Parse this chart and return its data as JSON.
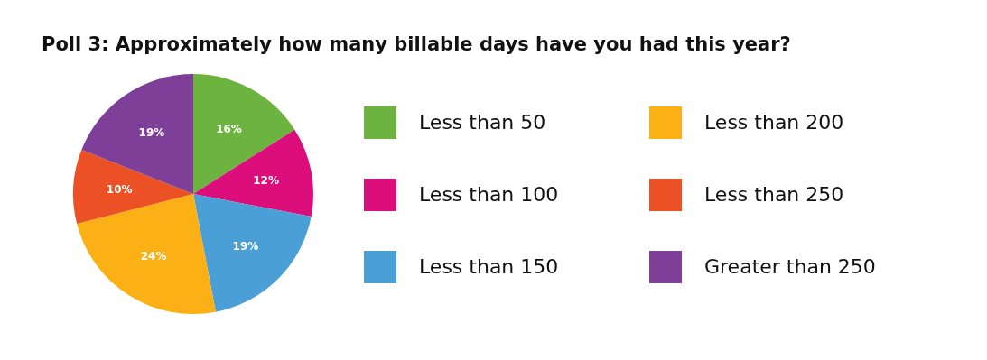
{
  "chart_data": {
    "type": "pie",
    "title": "Poll 3: Approximately how many billable days have you had this year?",
    "categories": [
      "Less than 50",
      "Less than 100",
      "Less than 150",
      "Less than 200",
      "Less than 250",
      "Greater than 250"
    ],
    "values": [
      16,
      12,
      19,
      24,
      10,
      19
    ],
    "value_labels": [
      "16%",
      "12%",
      "19%",
      "24%",
      "10%",
      "19%"
    ],
    "colors": [
      "#6db33f",
      "#dc0e7c",
      "#4a9fd6",
      "#fbb116",
      "#ec5025",
      "#7d3f98"
    ],
    "legend": "right"
  }
}
